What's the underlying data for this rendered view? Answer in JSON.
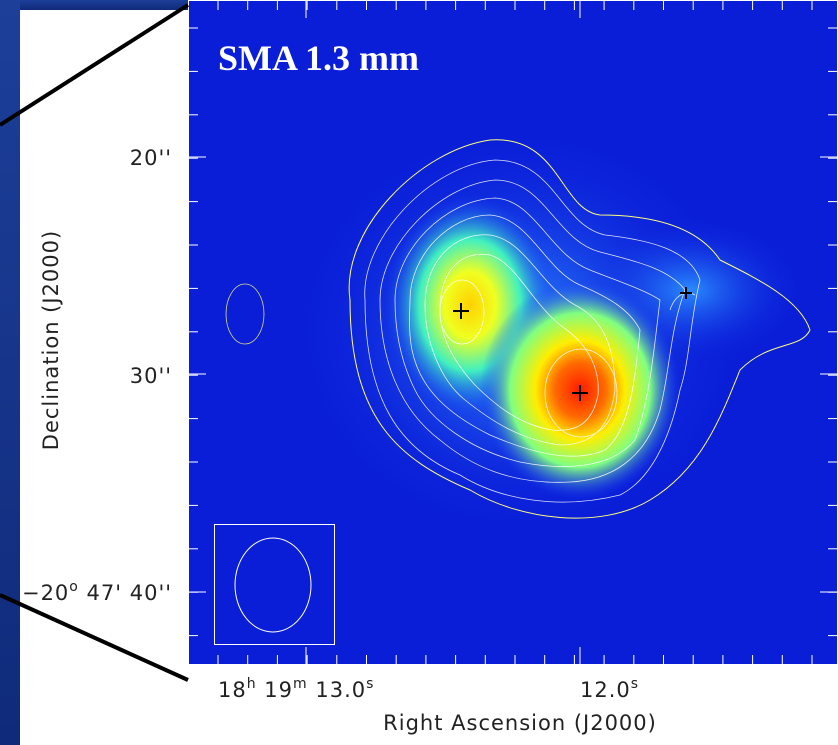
{
  "image": {
    "title": "SMA 1.3 mm",
    "y_axis": {
      "label": "Declination  (J2000)",
      "ticks": [
        {
          "main": "20''"
        },
        {
          "main": "30''"
        },
        {
          "main": "−20",
          "sup": "o",
          "rest": " 47' 40''"
        }
      ]
    },
    "x_axis": {
      "label": "Right Ascension  (J2000)",
      "ticks": [
        {
          "h": "18",
          "h_unit": "h",
          "m": "19",
          "m_unit": "m",
          "s": "13.0",
          "s_unit": "s"
        },
        {
          "s": "12.0",
          "s_unit": "s"
        }
      ]
    }
  }
}
